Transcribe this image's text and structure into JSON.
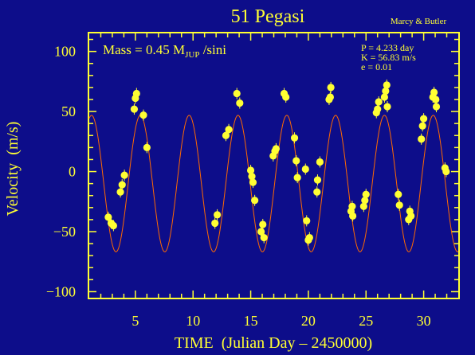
{
  "chart_data": {
    "type": "scatter",
    "title": "51 Pegasi",
    "credit": "Marcy & Butler",
    "annotation": {
      "prefix": "Mass = 0.45 M",
      "sub": "JUP",
      "suffix": " /sini"
    },
    "params": [
      "P = 4.233 day",
      "K = 56.83 m/s",
      "e = 0.01"
    ],
    "xlabel": "TIME  (Julian Day – 2450000)",
    "ylabel": "Velocity  (m/s)",
    "xlim": [
      1,
      33
    ],
    "ylim": [
      -105,
      115
    ],
    "xticks": [
      5,
      10,
      15,
      20,
      25,
      30
    ],
    "yticks": [
      100,
      50,
      0,
      -50,
      -100
    ],
    "ytick_labels": [
      "100",
      "50",
      "0",
      "−50",
      "−100"
    ],
    "grid": false,
    "model": {
      "period": 4.233,
      "amplitude": 56.83,
      "offset": -10.0,
      "phase_x": 1.2
    },
    "points": [
      [
        2.65,
        -38
      ],
      [
        2.9,
        -43
      ],
      [
        3.1,
        -45
      ],
      [
        3.7,
        -17
      ],
      [
        3.85,
        -11
      ],
      [
        4.05,
        -3
      ],
      [
        4.9,
        52
      ],
      [
        5.0,
        61
      ],
      [
        5.1,
        65
      ],
      [
        5.7,
        47
      ],
      [
        6.0,
        20
      ],
      [
        11.9,
        -43
      ],
      [
        12.1,
        -36
      ],
      [
        12.85,
        30
      ],
      [
        13.1,
        35
      ],
      [
        13.8,
        65
      ],
      [
        14.05,
        57
      ],
      [
        15.0,
        1
      ],
      [
        15.1,
        -4
      ],
      [
        15.2,
        -9
      ],
      [
        15.35,
        -24
      ],
      [
        15.9,
        -50
      ],
      [
        16.05,
        -44
      ],
      [
        16.15,
        -55
      ],
      [
        16.95,
        13
      ],
      [
        17.1,
        17
      ],
      [
        17.2,
        19
      ],
      [
        17.9,
        65
      ],
      [
        18.05,
        62
      ],
      [
        18.8,
        28
      ],
      [
        18.95,
        9
      ],
      [
        19.05,
        -5
      ],
      [
        19.75,
        2
      ],
      [
        19.85,
        -41
      ],
      [
        20.0,
        -57
      ],
      [
        20.1,
        -55
      ],
      [
        20.75,
        -17
      ],
      [
        20.8,
        -7
      ],
      [
        21.0,
        8
      ],
      [
        21.8,
        60
      ],
      [
        21.95,
        70
      ],
      [
        21.9,
        62
      ],
      [
        23.7,
        -33
      ],
      [
        23.8,
        -29
      ],
      [
        23.85,
        -37
      ],
      [
        24.8,
        -29
      ],
      [
        24.9,
        -24
      ],
      [
        25.0,
        -19
      ],
      [
        25.9,
        49
      ],
      [
        26.0,
        52
      ],
      [
        26.1,
        58
      ],
      [
        26.6,
        62
      ],
      [
        26.7,
        67
      ],
      [
        26.8,
        72
      ],
      [
        26.85,
        54
      ],
      [
        27.8,
        -19
      ],
      [
        27.9,
        -28
      ],
      [
        28.7,
        -40
      ],
      [
        28.8,
        -33
      ],
      [
        28.9,
        -37
      ],
      [
        29.8,
        27
      ],
      [
        29.9,
        38
      ],
      [
        30.0,
        44
      ],
      [
        30.8,
        62
      ],
      [
        30.9,
        66
      ],
      [
        31.05,
        60
      ],
      [
        31.1,
        54
      ],
      [
        31.85,
        3
      ],
      [
        31.95,
        0
      ]
    ]
  }
}
